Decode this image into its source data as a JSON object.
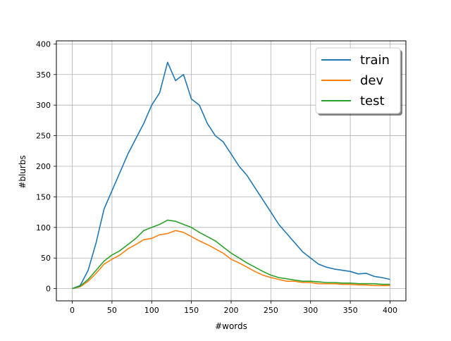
{
  "chart_data": {
    "type": "line",
    "title": "",
    "xlabel": "#words",
    "ylabel": "#blurbs",
    "xlim": [
      -20,
      420
    ],
    "ylim": [
      -20,
      405
    ],
    "x_ticks": [
      0,
      50,
      100,
      150,
      200,
      250,
      300,
      350,
      400
    ],
    "y_ticks": [
      0,
      50,
      100,
      150,
      200,
      250,
      300,
      350,
      400
    ],
    "grid": true,
    "legend_position": "top-right",
    "x": [
      0,
      10,
      20,
      30,
      40,
      50,
      60,
      70,
      80,
      90,
      100,
      110,
      120,
      130,
      140,
      150,
      160,
      170,
      180,
      190,
      200,
      210,
      220,
      230,
      240,
      250,
      260,
      270,
      280,
      290,
      300,
      310,
      320,
      330,
      340,
      350,
      360,
      370,
      380,
      390,
      400
    ],
    "series": [
      {
        "name": "train",
        "color": "#1f77b4",
        "values": [
          0,
          5,
          30,
          75,
          130,
          160,
          190,
          220,
          245,
          270,
          300,
          320,
          370,
          340,
          350,
          310,
          300,
          270,
          250,
          240,
          220,
          200,
          185,
          165,
          145,
          125,
          105,
          90,
          75,
          60,
          50,
          40,
          35,
          32,
          30,
          28,
          24,
          25,
          20,
          18,
          15
        ]
      },
      {
        "name": "dev",
        "color": "#ff7f0e",
        "values": [
          0,
          3,
          12,
          25,
          40,
          48,
          55,
          65,
          72,
          80,
          82,
          88,
          90,
          95,
          92,
          85,
          78,
          72,
          65,
          58,
          48,
          42,
          35,
          28,
          22,
          18,
          15,
          12,
          12,
          10,
          10,
          8,
          8,
          8,
          7,
          7,
          6,
          6,
          5,
          5,
          5
        ]
      },
      {
        "name": "test",
        "color": "#2ca02c",
        "values": [
          0,
          4,
          15,
          30,
          45,
          55,
          62,
          72,
          82,
          95,
          100,
          105,
          112,
          110,
          105,
          100,
          92,
          85,
          78,
          68,
          58,
          50,
          42,
          35,
          28,
          22,
          18,
          16,
          14,
          12,
          12,
          11,
          10,
          10,
          9,
          9,
          8,
          8,
          8,
          7,
          7
        ]
      }
    ]
  }
}
